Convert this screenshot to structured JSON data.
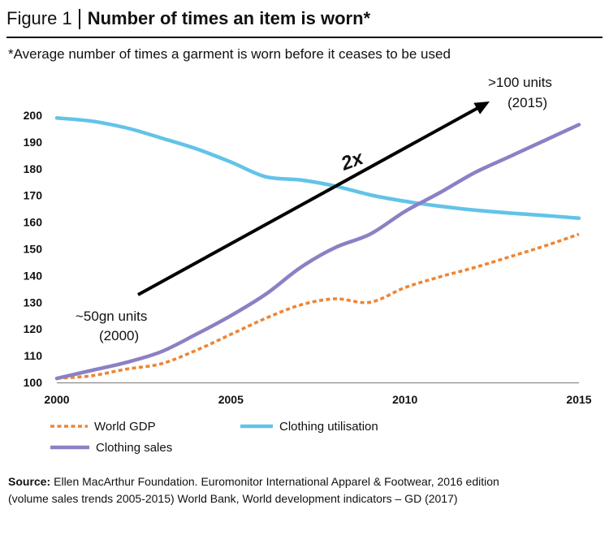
{
  "chart_data": {
    "type": "line",
    "figure_label": "Figure 1",
    "title": "Number of times an item is worn*",
    "subtitle": "*Average number of times a garment is worn before it ceases to be used",
    "x": [
      2000,
      2001,
      2002,
      2003,
      2004,
      2005,
      2006,
      2007,
      2008,
      2009,
      2010,
      2011,
      2012,
      2013,
      2014,
      2015
    ],
    "xlim": [
      2000,
      2015
    ],
    "ylim": [
      100,
      200
    ],
    "x_ticks": [
      2000,
      2005,
      2010,
      2015
    ],
    "y_ticks": [
      100,
      110,
      120,
      130,
      140,
      150,
      160,
      170,
      180,
      190,
      200
    ],
    "grid": false,
    "legend": "bottom",
    "series": [
      {
        "name": "World GDP",
        "color": "#EE8534",
        "style": "dotted",
        "values": [
          101.5,
          102.5,
          105.0,
          107.0,
          112.0,
          118.0,
          124.0,
          129.0,
          131.3,
          130.0,
          135.5,
          139.5,
          143.0,
          147.0,
          151.0,
          155.5
        ]
      },
      {
        "name": "Clothing utilisation",
        "color": "#62C3E8",
        "style": "solid",
        "values": [
          199.0,
          197.8,
          195.3,
          191.5,
          187.5,
          182.5,
          177.0,
          175.8,
          173.5,
          170.2,
          167.8,
          166.0,
          164.5,
          163.4,
          162.5,
          161.5
        ]
      },
      {
        "name": "Clothing sales",
        "color": "#8C80C4",
        "style": "solid",
        "values": [
          101.5,
          104.5,
          107.5,
          111.5,
          118.0,
          125.0,
          133.0,
          143.0,
          150.5,
          155.5,
          164.0,
          171.0,
          178.5,
          184.5,
          190.5,
          196.5
        ]
      }
    ],
    "annotations": {
      "end_value": ">100 units",
      "end_year": "(2015)",
      "growth": "2x",
      "start_value": "~50gn units",
      "start_year": "(2000)"
    }
  },
  "source": {
    "label": "Source:",
    "line_1": "Ellen MacArthur Foundation. Euromonitor International Apparel & Footwear, 2016 edition",
    "line_2": "(volume sales trends 2005-2015) World Bank, World development indicators – GD (2017)"
  }
}
